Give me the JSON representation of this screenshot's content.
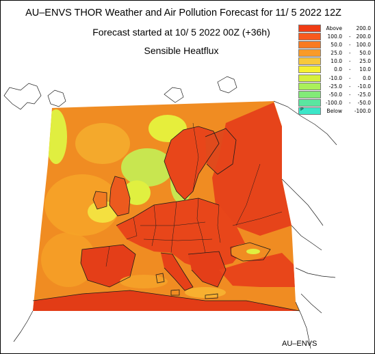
{
  "header": {
    "title": "AU–ENVS THOR Weather and Air Pollution Forecast for 11/ 5 2022  12Z",
    "subtitle": "Forecast started at 10/ 5 2022  00Z (+36h)",
    "field": "Sensible Heatflux"
  },
  "legend": [
    {
      "low": "Above",
      "high": "200.0",
      "color": "#f03c14"
    },
    {
      "low": "100.0",
      "high": "200.0",
      "color": "#f85a1e"
    },
    {
      "low": "50.0",
      "high": "100.0",
      "color": "#f97a20"
    },
    {
      "low": "25.0",
      "high": "50.0",
      "color": "#fa9b28"
    },
    {
      "low": "10.0",
      "high": "25.0",
      "color": "#f8c83c"
    },
    {
      "low": "0.0",
      "high": "10.0",
      "color": "#f6f032"
    },
    {
      "low": "-10.0",
      "high": "0.0",
      "color": "#d6f03c"
    },
    {
      "low": "-25.0",
      "high": "-10.0",
      "color": "#aaf05a"
    },
    {
      "low": "-50.0",
      "high": "-25.0",
      "color": "#82eb78"
    },
    {
      "low": "-100.0",
      "high": "-50.0",
      "color": "#5ae6a0"
    },
    {
      "low": "Below",
      "high": "-100.0",
      "color": "#3ce6c8",
      "marker": "P"
    }
  ],
  "credit": "AU–ENVS",
  "map": {
    "ocean_color": "#f08c22",
    "land_color": "#e8461a",
    "cool_color": "#c8e650",
    "coast_color": "#1a1a1a"
  }
}
